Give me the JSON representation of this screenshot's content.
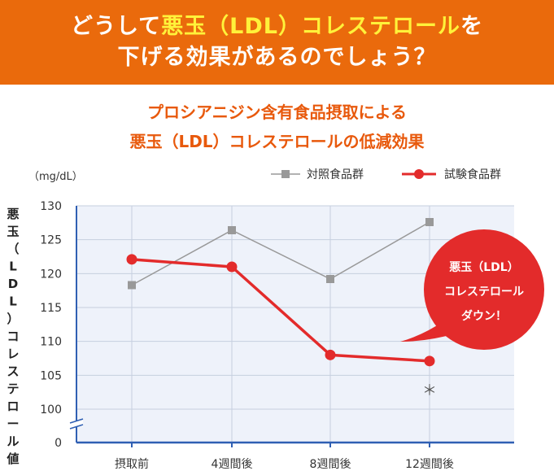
{
  "banner": {
    "line1_a": "どうして",
    "line1_b": "悪玉（LDL）コレステロール",
    "line1_c": "を",
    "line2_a": "下げる効果があるの",
    "line2_b": "でしょう？"
  },
  "colors": {
    "banner_bg": "#ea6a0c",
    "highlight": "#fff23a",
    "title": "#e8590c",
    "plot_bg": "#eef2fa",
    "axis": "#2f5fb3",
    "control_series": "#999999",
    "test_series": "#e32b2b"
  },
  "chart_data": {
    "type": "line",
    "title_line1": "プロシアニジン含有食品摂取による",
    "title_line2": "悪玉（LDL）コレステロールの低減効果",
    "unit_label": "（mg/dL）",
    "ylabel": "悪玉（LDL）コレステロール値",
    "xlabel": "",
    "categories": [
      "摂取前",
      "4週間後",
      "8週間後",
      "12週間後"
    ],
    "y_ticks": [
      0,
      100,
      105,
      110,
      115,
      120,
      125,
      130
    ],
    "ylim": [
      100,
      130
    ],
    "y_axis_break": true,
    "grid": true,
    "legend_position": "top-right",
    "series": [
      {
        "name": "対照食品群",
        "marker": "square",
        "color": "#999999",
        "values": [
          118.3,
          126.4,
          119.2,
          127.6
        ]
      },
      {
        "name": "試験食品群",
        "marker": "circle",
        "color": "#e32b2b",
        "values": [
          122.1,
          121.0,
          108.0,
          107.1
        ]
      }
    ],
    "annotations": {
      "significance_mark": "＊",
      "significance_category_index": 3,
      "callout_line1": "悪玉（LDL）",
      "callout_line2": "コレステロール",
      "callout_line3": "ダウン！"
    }
  }
}
